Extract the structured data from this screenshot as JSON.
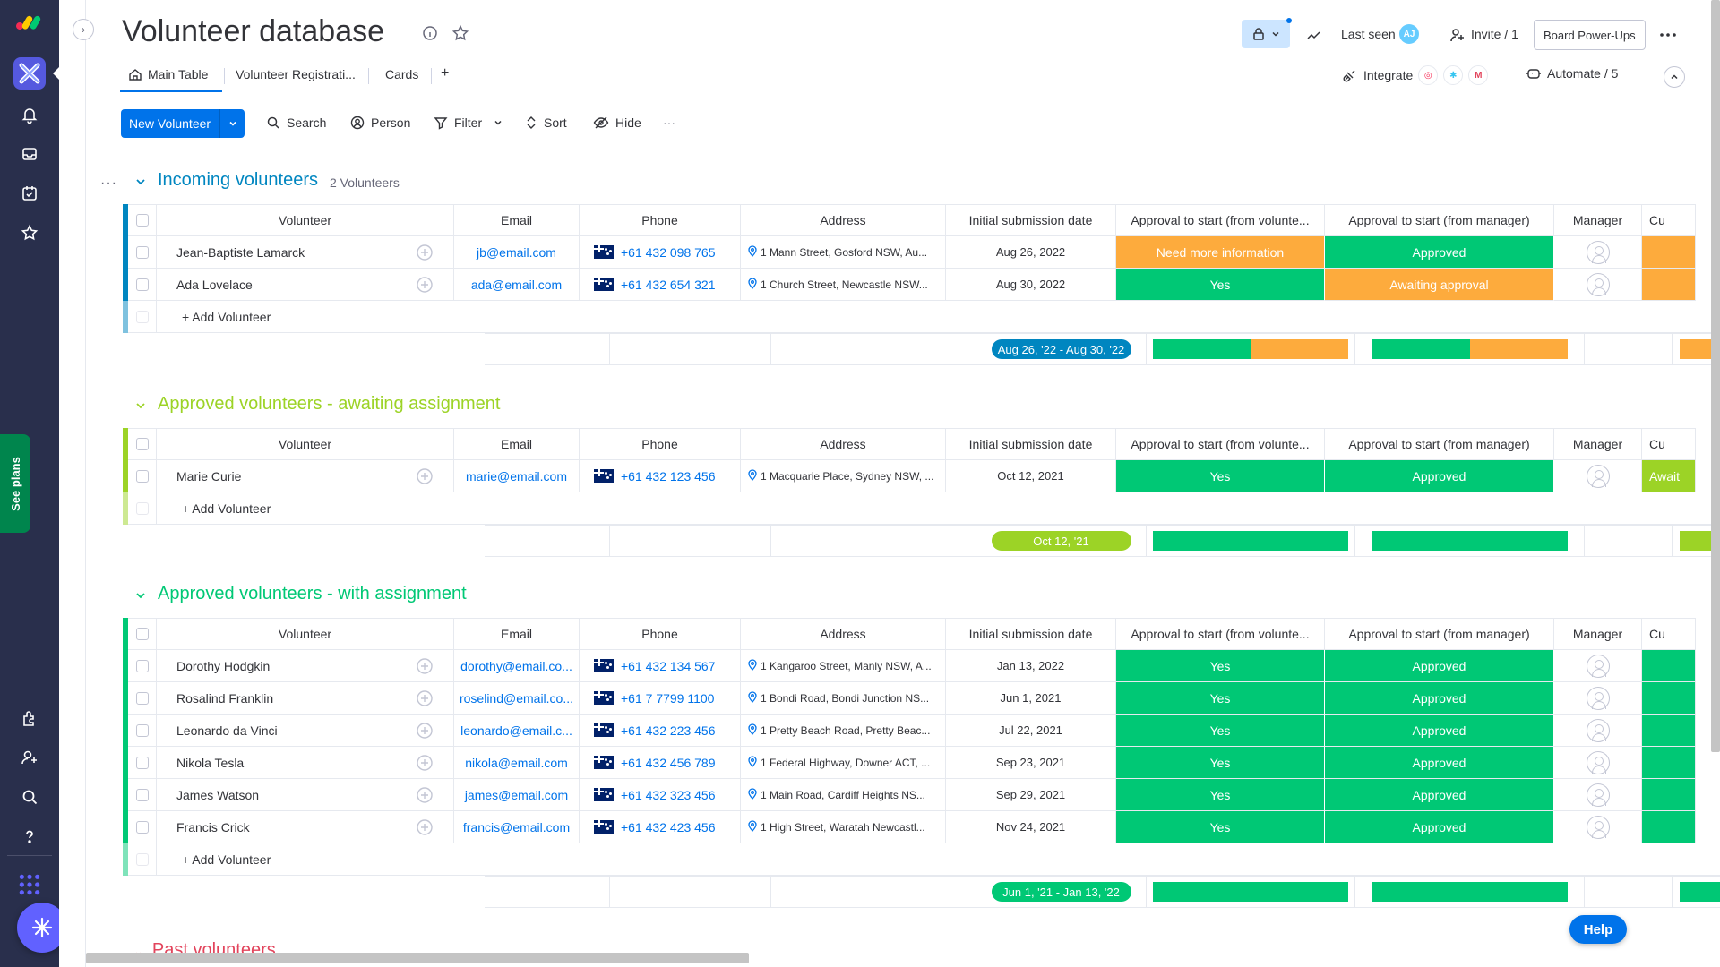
{
  "colors": {
    "accent": "#0073ea",
    "green": "#00c875",
    "orange": "#fdab3d",
    "lime": "#9cd326",
    "red": "#e2445c",
    "rail": "#292f4c"
  },
  "rail": {
    "see_plans": "See plans"
  },
  "header": {
    "title": "Volunteer database",
    "last_seen": "Last seen",
    "last_seen_avatar": "AJ",
    "invite": "Invite / 1",
    "power_ups": "Board Power-Ups"
  },
  "tabs": [
    {
      "label": "Main Table",
      "icon": "home-icon"
    },
    {
      "label": "Volunteer Registrati..."
    },
    {
      "label": "Cards"
    },
    {
      "label": "+"
    }
  ],
  "integrate": {
    "label": "Integrate",
    "automate": "Automate / 5"
  },
  "toolbar": {
    "new_item": "New Volunteer",
    "search": "Search",
    "person": "Person",
    "filter": "Filter",
    "sort": "Sort",
    "hide": "Hide",
    "more": "···"
  },
  "columns": {
    "volunteer": "Volunteer",
    "email": "Email",
    "phone": "Phone",
    "address": "Address",
    "date": "Initial submission date",
    "approval_volunteer": "Approval to start (from volunte...",
    "approval_manager": "Approval to start (from manager)",
    "manager": "Manager",
    "cut": "Cu"
  },
  "add_row_label": "+ Add Volunteer",
  "groups": [
    {
      "title": "Incoming volunteers",
      "count": "2 Volunteers",
      "color": "#0086c0",
      "rows": [
        {
          "name": "Jean-Baptiste Lamarck",
          "email": "jb@email.com",
          "phone": "+61 432 098 765",
          "address": "1 Mann Street, Gosford NSW, Au...",
          "date": "Aug 26, 2022",
          "apv": "Need more information",
          "apv_color": "orange",
          "apm": "Approved",
          "apm_color": "green",
          "cu": "",
          "cu_color": "orange"
        },
        {
          "name": "Ada Lovelace",
          "email": "ada@email.com",
          "phone": "+61 432 654 321",
          "address": "1 Church Street, Newcastle NSW...",
          "date": "Aug 30, 2022",
          "apv": "Yes",
          "apv_color": "green",
          "apm": "Awaiting approval",
          "apm_color": "orange",
          "cu": "",
          "cu_color": "orange"
        }
      ],
      "summary": {
        "date_range": "Aug 26, '22 - Aug 30, '22",
        "pill_color": "#0086c0",
        "apv_split": [
          50,
          50
        ],
        "apm_split": [
          50,
          50
        ]
      }
    },
    {
      "title": "Approved volunteers - awaiting assignment",
      "count": "",
      "color": "#9cd326",
      "rows": [
        {
          "name": "Marie Curie",
          "email": "marie@email.com",
          "phone": "+61 432 123 456",
          "address": "1 Macquarie Place, Sydney NSW, ...",
          "date": "Oct 12, 2021",
          "apv": "Yes",
          "apv_color": "green",
          "apm": "Approved",
          "apm_color": "green",
          "cu": "Await",
          "cu_color": "lime"
        }
      ],
      "summary": {
        "date_range": "Oct 12, '21",
        "pill_color": "#9cd326",
        "apv_split": [
          100,
          0
        ],
        "apm_split": [
          100,
          0
        ]
      }
    },
    {
      "title": "Approved volunteers - with assignment",
      "count": "",
      "color": "#00c875",
      "rows": [
        {
          "name": "Dorothy Hodgkin",
          "email": "dorothy@email.co...",
          "phone": "+61 432 134 567",
          "address": "1 Kangaroo Street, Manly NSW, A...",
          "date": "Jan 13, 2022",
          "apv": "Yes",
          "apv_color": "green",
          "apm": "Approved",
          "apm_color": "green",
          "cu": "",
          "cu_color": "green"
        },
        {
          "name": "Rosalind Franklin",
          "email": "roselind@email.co...",
          "phone": "+61 7 7799 1100",
          "address": "1 Bondi Road, Bondi Junction NS...",
          "date": "Jun 1, 2021",
          "apv": "Yes",
          "apv_color": "green",
          "apm": "Approved",
          "apm_color": "green",
          "cu": "",
          "cu_color": "green"
        },
        {
          "name": "Leonardo da Vinci",
          "email": "leonardo@email.c...",
          "phone": "+61 432 223 456",
          "address": "1 Pretty Beach Road, Pretty Beac...",
          "date": "Jul 22, 2021",
          "apv": "Yes",
          "apv_color": "green",
          "apm": "Approved",
          "apm_color": "green",
          "cu": "",
          "cu_color": "green"
        },
        {
          "name": "Nikola Tesla",
          "email": "nikola@email.com",
          "phone": "+61 432 456 789",
          "address": "1 Federal Highway, Downer ACT, ...",
          "date": "Sep 23, 2021",
          "apv": "Yes",
          "apv_color": "green",
          "apm": "Approved",
          "apm_color": "green",
          "cu": "",
          "cu_color": "green"
        },
        {
          "name": "James Watson",
          "email": "james@email.com",
          "phone": "+61 432 323 456",
          "address": "1 Main Road, Cardiff Heights NS...",
          "date": "Sep 29, 2021",
          "apv": "Yes",
          "apv_color": "green",
          "apm": "Approved",
          "apm_color": "green",
          "cu": "",
          "cu_color": "green"
        },
        {
          "name": "Francis Crick",
          "email": "francis@email.com",
          "phone": "+61 432 423 456",
          "address": "1 High Street, Waratah Newcastl...",
          "date": "Nov 24, 2021",
          "apv": "Yes",
          "apv_color": "green",
          "apm": "Approved",
          "apm_color": "green",
          "cu": "",
          "cu_color": "green"
        }
      ],
      "summary": {
        "date_range": "Jun 1, '21 - Jan 13, '22",
        "pill_color": "#00c875",
        "apv_split": [
          100,
          0
        ],
        "apm_split": [
          100,
          0
        ]
      }
    }
  ],
  "past_group": "Past volunteers",
  "help": "Help"
}
